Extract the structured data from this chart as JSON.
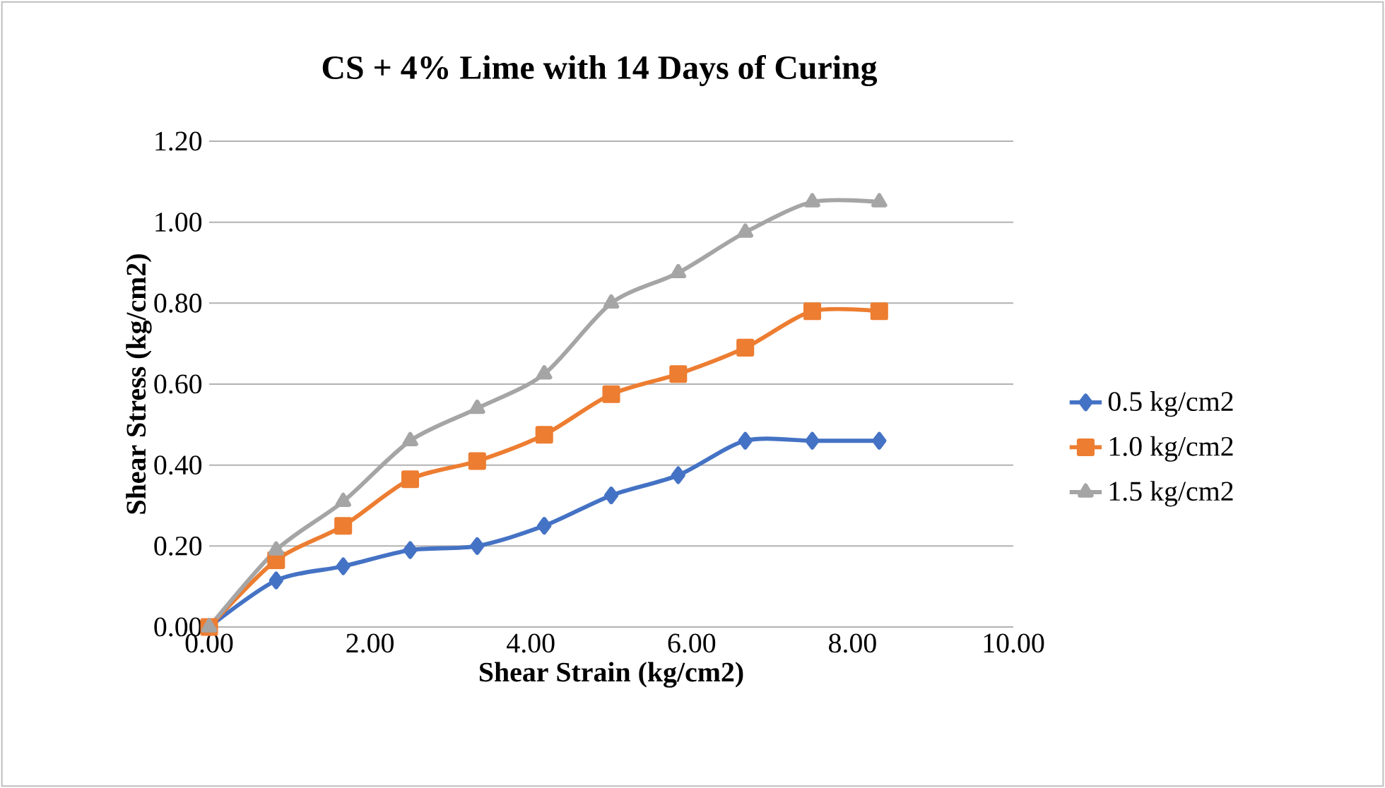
{
  "chart_data": {
    "type": "line",
    "title": "CS + 4% Lime with 14 Days of Curing",
    "xlabel": "Shear Strain (kg/cm2)",
    "ylabel": "Shear Stress (kg/cm2)",
    "x": [
      0,
      0.833,
      1.667,
      2.5,
      3.333,
      4.167,
      5,
      5.833,
      6.667,
      7.5,
      8.333
    ],
    "series": [
      {
        "name": "0.5 kg/cm2",
        "color": "#4472c4",
        "marker": "diamond",
        "values": [
          0,
          0.115,
          0.15,
          0.19,
          0.2,
          0.25,
          0.325,
          0.375,
          0.46,
          0.46,
          0.46
        ]
      },
      {
        "name": "1.0 kg/cm2",
        "color": "#ed7d31",
        "marker": "square",
        "values": [
          0,
          0.165,
          0.25,
          0.365,
          0.41,
          0.475,
          0.575,
          0.625,
          0.69,
          0.78,
          0.78
        ]
      },
      {
        "name": "1.5 kg/cm2",
        "color": "#a5a5a5",
        "marker": "triangle",
        "values": [
          0,
          0.19,
          0.31,
          0.46,
          0.54,
          0.625,
          0.8,
          0.875,
          0.975,
          1.05,
          1.05
        ]
      }
    ],
    "xlim": [
      0,
      10
    ],
    "xticks": [
      {
        "value": 0,
        "label": "0.00"
      },
      {
        "value": 2,
        "label": "2.00"
      },
      {
        "value": 4,
        "label": "4.00"
      },
      {
        "value": 6,
        "label": "6.00"
      },
      {
        "value": 8,
        "label": "8.00"
      },
      {
        "value": 10,
        "label": "10.00"
      }
    ],
    "ylim": [
      0,
      1.2
    ],
    "yticks": [
      {
        "value": 0,
        "label": "0.00"
      },
      {
        "value": 0.2,
        "label": "0.20"
      },
      {
        "value": 0.4,
        "label": "0.40"
      },
      {
        "value": 0.6,
        "label": "0.60"
      },
      {
        "value": 0.8,
        "label": "0.80"
      },
      {
        "value": 1,
        "label": "1.00"
      },
      {
        "value": 1.2,
        "label": "1.20"
      }
    ],
    "grid": "y",
    "legend": "right",
    "line_style": "solid"
  }
}
